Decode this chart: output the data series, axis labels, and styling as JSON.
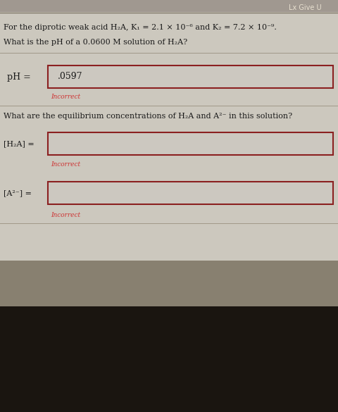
{
  "bg_color_top": "#d0cdc5",
  "bg_color_mid": "#c0bdb5",
  "bg_color_bot": "#2a2620",
  "dark_bar_color": "#111008",
  "title_line1": "For the diprotic weak acid H₂A, K₁ = 2.1 × 10⁻⁶ and K₂ = 7.2 × 10⁻⁹.",
  "title_line2": "What is the pH of a 0.0600 M solution of H₂A?",
  "ph_label": "pH =",
  "ph_value": ".0597",
  "incorrect1": "Incorrect",
  "question2": "What are the equilibrium concentrations of H₂A and A²⁻ in this solution?",
  "h2a_label": "[H₂A] =",
  "a2_label": "[A²⁻] =",
  "incorrect2": "Incorrect",
  "incorrect3": "Incorrect",
  "top_strip_color": "#a09890",
  "give_up_text": "Lx Give U",
  "box_border_color": "#8b2020",
  "input_fill_color": "#ccc8c0",
  "separator_color": "#a09888",
  "text_color": "#1a1a1a"
}
